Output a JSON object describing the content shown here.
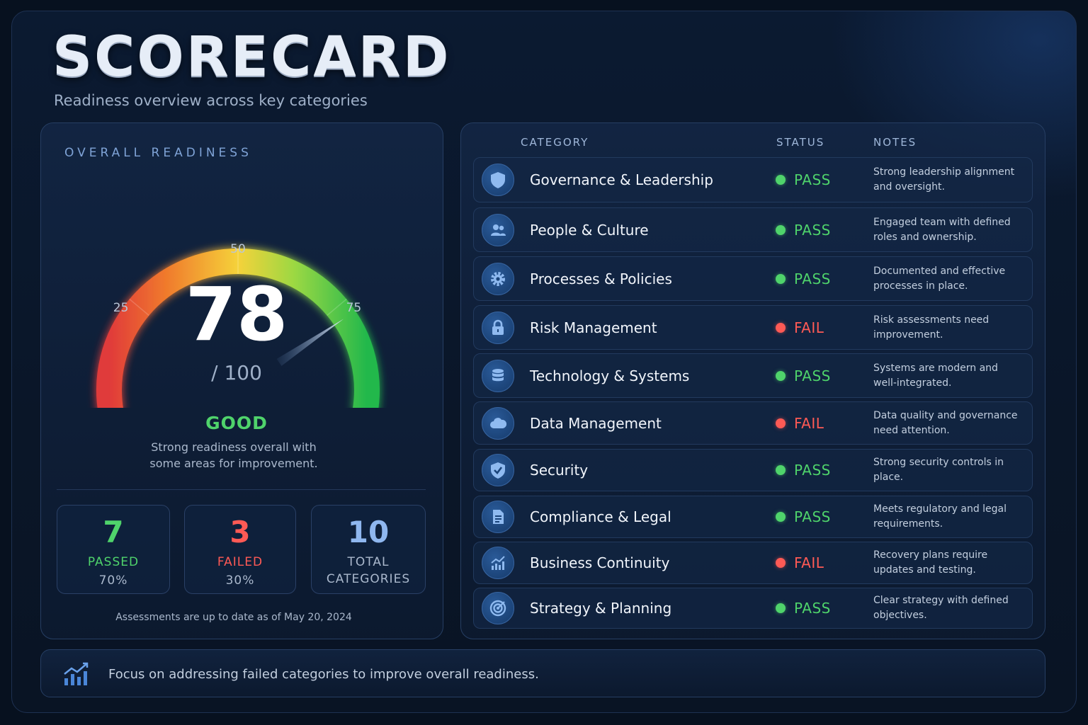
{
  "header": {
    "title": "SCORECARD",
    "subtitle": "Readiness overview across key categories"
  },
  "overall": {
    "label": "OVERALL READINESS",
    "score": 78,
    "score_suffix": "/ 100",
    "gauge_ticks": [
      "0",
      "25",
      "50",
      "75",
      "100"
    ],
    "gauge_min": 0,
    "gauge_max": 100,
    "rating": "GOOD",
    "rating_desc_line1": "Strong readiness overall with",
    "rating_desc_line2": "some areas for improvement.",
    "updated": "Assessments are up to date as of May 20, 2024"
  },
  "stats": {
    "passed": {
      "value": "7",
      "label": "PASSED",
      "sub": "70%"
    },
    "failed": {
      "value": "3",
      "label": "FAILED",
      "sub": "30%"
    },
    "total": {
      "value": "10",
      "label_line1": "TOTAL",
      "label_line2": "CATEGORIES"
    }
  },
  "table": {
    "headers": {
      "category": "CATEGORY",
      "status": "STATUS",
      "notes": "NOTES"
    },
    "rows": [
      {
        "icon": "shield-icon",
        "name": "Governance & Leadership",
        "status": "PASS",
        "note": "Strong leadership alignment and oversight."
      },
      {
        "icon": "people-icon",
        "name": "People & Culture",
        "status": "PASS",
        "note": "Engaged team with defined roles and ownership."
      },
      {
        "icon": "gear-icon",
        "name": "Processes & Policies",
        "status": "PASS",
        "note": "Documented and effective processes in place."
      },
      {
        "icon": "lock-icon",
        "name": "Risk Management",
        "status": "FAIL",
        "note": "Risk assessments need improvement."
      },
      {
        "icon": "database-icon",
        "name": "Technology & Systems",
        "status": "PASS",
        "note": "Systems are modern and well-integrated."
      },
      {
        "icon": "cloud-icon",
        "name": "Data Management",
        "status": "FAIL",
        "note": "Data quality and governance need attention."
      },
      {
        "icon": "shield-check-icon",
        "name": "Security",
        "status": "PASS",
        "note": "Strong security controls in place."
      },
      {
        "icon": "document-icon",
        "name": "Compliance & Legal",
        "status": "PASS",
        "note": "Meets regulatory and legal requirements."
      },
      {
        "icon": "chart-trend-icon",
        "name": "Business Continuity",
        "status": "FAIL",
        "note": "Recovery plans require updates and testing."
      },
      {
        "icon": "target-icon",
        "name": "Strategy & Planning",
        "status": "PASS",
        "note": "Clear strategy with defined objectives."
      }
    ]
  },
  "footer": {
    "icon": "chart-trend-icon",
    "text": "Focus on addressing failed categories to improve overall readiness."
  },
  "colors": {
    "pass": "#4fd36b",
    "fail": "#ff5a55",
    "accent": "#7fa3d6",
    "gauge_start": "#e03a3a",
    "gauge_mid": "#f5d23a",
    "gauge_end": "#22b84c"
  }
}
